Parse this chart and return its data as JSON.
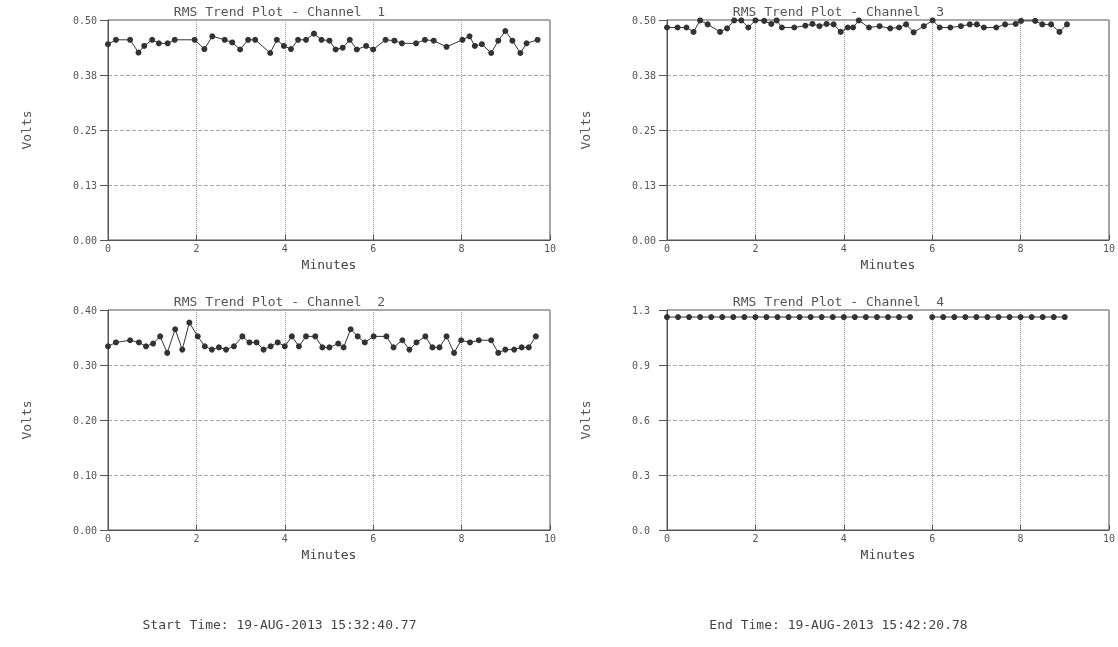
{
  "chart_data": [
    {
      "type": "line",
      "title": "RMS Trend Plot - Channel  1",
      "xlabel": "Minutes",
      "ylabel": "Volts",
      "xlim": [
        0,
        10
      ],
      "xticks": [
        0,
        2,
        4,
        6,
        8,
        10
      ],
      "ylim": [
        0,
        0.5
      ],
      "yticks": [
        {
          "value": 0,
          "label": "0.00"
        },
        {
          "value": 0.125,
          "label": "0.13"
        },
        {
          "value": 0.25,
          "label": "0.25"
        },
        {
          "value": 0.375,
          "label": "0.38"
        },
        {
          "value": 0.5,
          "label": "0.50"
        }
      ],
      "grid": true,
      "marker": "circle",
      "line_style": "solid",
      "series": [
        {
          "color": "#333333",
          "x": [
            0,
            0.18,
            0.5,
            0.69,
            0.82,
            1.0,
            1.15,
            1.35,
            1.51,
            1.96,
            2.18,
            2.36,
            2.64,
            2.81,
            2.99,
            3.17,
            3.33,
            3.67,
            3.82,
            3.98,
            4.14,
            4.3,
            4.48,
            4.66,
            4.83,
            5.01,
            5.15,
            5.31,
            5.47,
            5.63,
            5.84,
            6.0,
            6.28,
            6.48,
            6.65,
            6.97,
            7.17,
            7.37,
            7.66,
            8.02,
            8.18,
            8.3,
            8.46,
            8.67,
            8.83,
            8.99,
            9.15,
            9.33,
            9.47,
            9.72
          ],
          "values": [
            0.445,
            0.455,
            0.455,
            0.426,
            0.441,
            0.455,
            0.447,
            0.447,
            0.455,
            0.455,
            0.434,
            0.463,
            0.455,
            0.449,
            0.433,
            0.455,
            0.455,
            0.425,
            0.455,
            0.441,
            0.434,
            0.455,
            0.455,
            0.469,
            0.455,
            0.453,
            0.433,
            0.437,
            0.455,
            0.433,
            0.441,
            0.433,
            0.455,
            0.453,
            0.447,
            0.447,
            0.455,
            0.453,
            0.439,
            0.455,
            0.463,
            0.441,
            0.445,
            0.425,
            0.453,
            0.475,
            0.453,
            0.425,
            0.447,
            0.455
          ]
        }
      ]
    },
    {
      "type": "line",
      "title": "RMS Trend Plot - Channel  3",
      "xlabel": "Minutes",
      "ylabel": "Volts",
      "xlim": [
        0,
        10
      ],
      "xticks": [
        0,
        2,
        4,
        6,
        8,
        10
      ],
      "ylim": [
        0,
        0.5
      ],
      "yticks": [
        {
          "value": 0,
          "label": "0.00"
        },
        {
          "value": 0.125,
          "label": "0.13"
        },
        {
          "value": 0.25,
          "label": "0.25"
        },
        {
          "value": 0.375,
          "label": "0.38"
        },
        {
          "value": 0.5,
          "label": "0.50"
        }
      ],
      "grid": true,
      "marker": "circle",
      "line_style": "solid",
      "series": [
        {
          "color": "#333333",
          "x": [
            0,
            0.24,
            0.44,
            0.6,
            0.75,
            0.92,
            1.2,
            1.36,
            1.52,
            1.68,
            1.84,
            2.0,
            2.2,
            2.36,
            2.48,
            2.6,
            2.88,
            3.13,
            3.29,
            3.45,
            3.61,
            3.77,
            3.93,
            4.09,
            4.21,
            4.34,
            4.57,
            4.81,
            5.05,
            5.25,
            5.41,
            5.58,
            5.81,
            6.01,
            6.17,
            6.41,
            6.65,
            6.85,
            7.01,
            7.17,
            7.45,
            7.65,
            7.89,
            8.01,
            8.33,
            8.49,
            8.69,
            8.88,
            9.05
          ],
          "values": [
            0.483,
            0.483,
            0.483,
            0.473,
            0.499,
            0.49,
            0.473,
            0.481,
            0.499,
            0.499,
            0.483,
            0.499,
            0.498,
            0.491,
            0.499,
            0.483,
            0.483,
            0.487,
            0.491,
            0.486,
            0.491,
            0.49,
            0.473,
            0.483,
            0.483,
            0.499,
            0.483,
            0.486,
            0.481,
            0.483,
            0.49,
            0.472,
            0.486,
            0.499,
            0.483,
            0.483,
            0.486,
            0.49,
            0.49,
            0.483,
            0.483,
            0.49,
            0.491,
            0.498,
            0.498,
            0.49,
            0.49,
            0.473,
            0.49
          ]
        }
      ]
    },
    {
      "type": "line",
      "title": "RMS Trend Plot - Channel  2",
      "xlabel": "Minutes",
      "ylabel": "Volts",
      "xlim": [
        0,
        10
      ],
      "xticks": [
        0,
        2,
        4,
        6,
        8,
        10
      ],
      "ylim": [
        0,
        0.4
      ],
      "yticks": [
        {
          "value": 0,
          "label": "0.00"
        },
        {
          "value": 0.1,
          "label": "0.10"
        },
        {
          "value": 0.2,
          "label": "0.20"
        },
        {
          "value": 0.3,
          "label": "0.30"
        },
        {
          "value": 0.4,
          "label": "0.40"
        }
      ],
      "grid": true,
      "marker": "circle",
      "line_style": "solid",
      "annotations": [
        "Start Time: 19-AUG-2013 15:32:40.77"
      ],
      "series": [
        {
          "color": "#333333",
          "x": [
            0,
            0.18,
            0.5,
            0.7,
            0.86,
            1.02,
            1.18,
            1.34,
            1.52,
            1.68,
            1.84,
            2.03,
            2.19,
            2.35,
            2.51,
            2.67,
            2.85,
            3.04,
            3.2,
            3.36,
            3.52,
            3.68,
            3.84,
            4.0,
            4.16,
            4.32,
            4.48,
            4.69,
            4.85,
            5.01,
            5.21,
            5.33,
            5.49,
            5.65,
            5.81,
            6.01,
            6.3,
            6.46,
            6.66,
            6.82,
            6.98,
            7.18,
            7.34,
            7.5,
            7.66,
            7.83,
            7.99,
            8.19,
            8.39,
            8.67,
            8.83,
            8.99,
            9.19,
            9.36,
            9.52,
            9.68
          ],
          "values": [
            0.334,
            0.341,
            0.345,
            0.341,
            0.334,
            0.339,
            0.352,
            0.322,
            0.365,
            0.328,
            0.377,
            0.352,
            0.334,
            0.328,
            0.332,
            0.328,
            0.334,
            0.352,
            0.341,
            0.341,
            0.328,
            0.334,
            0.341,
            0.334,
            0.352,
            0.334,
            0.352,
            0.352,
            0.332,
            0.332,
            0.339,
            0.332,
            0.365,
            0.352,
            0.341,
            0.352,
            0.352,
            0.332,
            0.345,
            0.328,
            0.341,
            0.352,
            0.332,
            0.332,
            0.352,
            0.322,
            0.345,
            0.341,
            0.345,
            0.345,
            0.322,
            0.328,
            0.328,
            0.332,
            0.332,
            0.352
          ]
        }
      ]
    },
    {
      "type": "line",
      "title": "RMS Trend Plot - Channel  4",
      "xlabel": "Minutes",
      "ylabel": "Volts",
      "xlim": [
        0,
        10
      ],
      "xticks": [
        0,
        2,
        4,
        6,
        8,
        10
      ],
      "ylim": [
        0,
        1.25
      ],
      "yticks": [
        {
          "value": 0,
          "label": "0.0"
        },
        {
          "value": 0.3125,
          "label": "0.3"
        },
        {
          "value": 0.625,
          "label": "0.6"
        },
        {
          "value": 0.9375,
          "label": "0.9"
        },
        {
          "value": 1.25,
          "label": "1.3"
        }
      ],
      "grid": true,
      "marker": "circle",
      "line_style": "solid",
      "annotations": [
        "End Time: 19-AUG-2013 15:42:20.78"
      ],
      "series": [
        {
          "color": "#333333",
          "x": [
            0,
            0.25,
            0.5,
            0.75,
            1.0,
            1.25,
            1.5,
            1.75,
            2.0,
            2.25,
            2.5,
            2.75,
            3.0,
            3.25,
            3.5,
            3.75,
            4.0,
            4.25,
            4.5,
            4.75,
            5.0,
            5.25,
            5.5,
            5.75,
            6.0,
            6.25,
            6.5,
            6.75,
            7.0,
            7.25,
            7.5,
            7.75,
            8.0,
            8.25,
            8.5,
            8.75,
            9.0
          ],
          "values": [
            1.21,
            1.21,
            1.21,
            1.21,
            1.21,
            1.21,
            1.21,
            1.21,
            1.21,
            1.21,
            1.21,
            1.21,
            1.21,
            1.21,
            1.21,
            1.21,
            1.21,
            1.21,
            1.21,
            1.21,
            1.21,
            1.21,
            1.21,
            null,
            1.21,
            1.21,
            1.21,
            1.21,
            1.21,
            1.21,
            1.21,
            1.21,
            1.21,
            1.21,
            1.21,
            1.21,
            1.21
          ]
        }
      ]
    }
  ]
}
